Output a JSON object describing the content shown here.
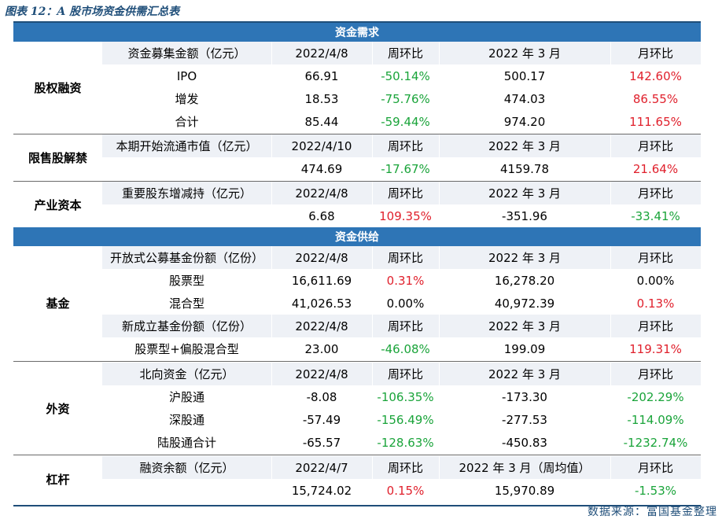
{
  "title": "图表 12：A 股市场资金供需汇总表",
  "source": "数据来源：富国基金整理",
  "colors": {
    "band": "#2E75B6",
    "title": "#1F4E79",
    "up": "#E0202C",
    "down": "#1AA43A"
  },
  "demand": {
    "band_label": "资金需求",
    "sections": [
      {
        "label": "股权融资",
        "rows": [
          {
            "type": "header",
            "cells": [
              "资金募集金额（亿元）",
              "2022/4/8",
              "周环比",
              "2022 年 3 月",
              "月环比"
            ]
          },
          {
            "type": "data",
            "cells": [
              "IPO",
              "66.91",
              "-50.14%",
              "500.17",
              "142.60%"
            ]
          },
          {
            "type": "data",
            "cells": [
              "增发",
              "18.53",
              "-75.76%",
              "474.03",
              "86.55%"
            ]
          },
          {
            "type": "data",
            "cells": [
              "合计",
              "85.44",
              "-59.44%",
              "974.20",
              "111.65%"
            ]
          }
        ]
      },
      {
        "label": "限售股解禁",
        "rows": [
          {
            "type": "header",
            "cells": [
              "本期开始流通市值（亿元）",
              "2022/4/10",
              "周环比",
              "2022 年 3 月",
              "月环比"
            ]
          },
          {
            "type": "data",
            "cells": [
              "",
              "474.69",
              "-17.67%",
              "4159.78",
              "21.64%"
            ]
          }
        ]
      },
      {
        "label": "产业资本",
        "rows": [
          {
            "type": "header",
            "cells": [
              "重要股东增减持（亿元）",
              "2022/4/8",
              "周环比",
              "2022 年 3 月",
              "月环比"
            ]
          },
          {
            "type": "data",
            "cells": [
              "",
              "6.68",
              "109.35%",
              "-351.96",
              "-33.41%"
            ]
          }
        ]
      }
    ]
  },
  "supply": {
    "band_label": "资金供给",
    "sections": [
      {
        "label": "基金",
        "rows": [
          {
            "type": "header",
            "cells": [
              "开放式公募基金份额（亿份）",
              "2022/4/8",
              "周环比",
              "2022 年 3 月",
              "月环比"
            ]
          },
          {
            "type": "data",
            "cells": [
              "股票型",
              "16,611.69",
              "0.31%",
              "16,278.20",
              "0.00%"
            ]
          },
          {
            "type": "data",
            "cells": [
              "混合型",
              "41,026.53",
              "0.00%",
              "40,972.39",
              "0.13%"
            ]
          },
          {
            "type": "header",
            "cells": [
              "新成立基金份额（亿份）",
              "2022/4/8",
              "周环比",
              "2022 年 3 月",
              "月环比"
            ]
          },
          {
            "type": "data",
            "cells": [
              "股票型+偏股混合型",
              "23.00",
              "-46.08%",
              "199.09",
              "119.31%"
            ]
          }
        ]
      },
      {
        "label": "外资",
        "rows": [
          {
            "type": "header",
            "cells": [
              "北向资金（亿元）",
              "2022/4/8",
              "周环比",
              "2022 年 3 月",
              "月环比"
            ]
          },
          {
            "type": "data",
            "cells": [
              "沪股通",
              "-8.08",
              "-106.35%",
              "-173.30",
              "-202.29%"
            ]
          },
          {
            "type": "data",
            "cells": [
              "深股通",
              "-57.49",
              "-156.49%",
              "-277.53",
              "-114.09%"
            ]
          },
          {
            "type": "data",
            "cells": [
              "陆股通合计",
              "-65.57",
              "-128.63%",
              "-450.83",
              "-1232.74%"
            ]
          }
        ]
      },
      {
        "label": "杠杆",
        "rows": [
          {
            "type": "header",
            "cells": [
              "融资余额（亿元）",
              "2022/4/7",
              "周环比",
              "2022 年 3 月（周均值）",
              "月环比"
            ]
          },
          {
            "type": "data",
            "cells": [
              "",
              "15,724.02",
              "0.15%",
              "15,970.89",
              "-1.53%"
            ]
          }
        ]
      }
    ]
  }
}
